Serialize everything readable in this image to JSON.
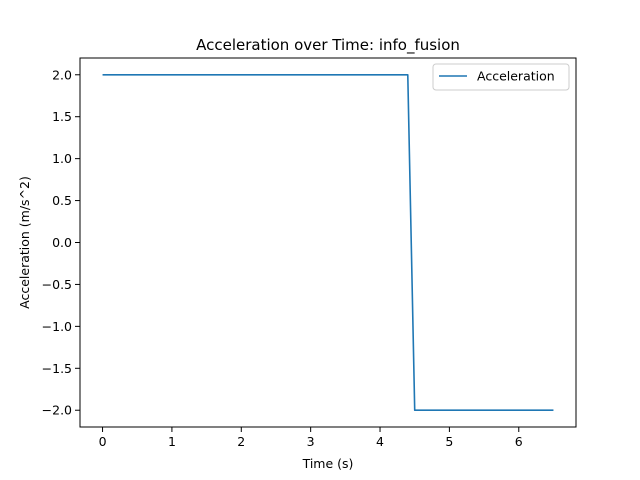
{
  "chart_data": {
    "type": "line",
    "title": "Acceleration over Time: info_fusion",
    "xlabel": "Time (s)",
    "ylabel": "Acceleration (m/s^2)",
    "xlim": [
      -0.325,
      6.825
    ],
    "ylim": [
      -2.2,
      2.2
    ],
    "xticks": [
      0,
      1,
      2,
      3,
      4,
      5,
      6
    ],
    "xtick_labels": [
      "0",
      "1",
      "2",
      "3",
      "4",
      "5",
      "6"
    ],
    "yticks": [
      2.0,
      1.5,
      1.0,
      0.5,
      0.0,
      -0.5,
      -1.0,
      -1.5,
      -2.0
    ],
    "ytick_labels": [
      "2.0",
      "1.5",
      "1.0",
      "0.5",
      "0.0",
      "−0.5",
      "−1.0",
      "−1.5",
      "−2.0"
    ],
    "grid": false,
    "legend_position": "top-right",
    "series": [
      {
        "name": "Acceleration",
        "color": "#1f77b4",
        "x": [
          0,
          4.4,
          4.5,
          6.5
        ],
        "y": [
          2.0,
          2.0,
          -2.0,
          -2.0
        ]
      }
    ]
  }
}
